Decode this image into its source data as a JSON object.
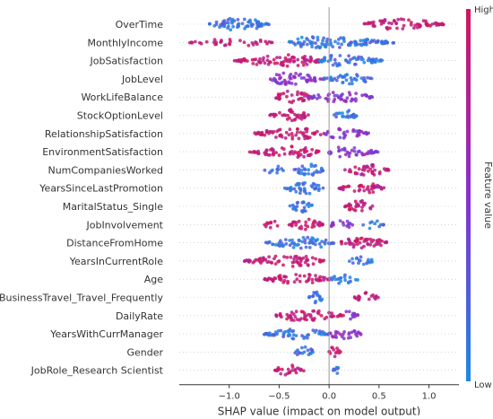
{
  "chart_data": {
    "type": "scatter",
    "subtype": "beeswarm",
    "title": "",
    "xlabel": "SHAP value (impact on model output)",
    "ylabel": "",
    "xlim": [
      -1.5,
      1.3
    ],
    "xticks": [
      -1.0,
      -0.5,
      0.0,
      0.5,
      1.0
    ],
    "xtick_labels": [
      "−1.0",
      "−0.5",
      "0.0",
      "0.5",
      "1.0"
    ],
    "grid": false,
    "colorbar": {
      "label": "Feature value",
      "high_label": "High",
      "low_label": "Low",
      "high_color": "#d1165d",
      "mid_color": "#8a2ed0",
      "low_color": "#1e88e5"
    },
    "features": [
      {
        "name": "OverTime",
        "clusters": [
          {
            "from": -1.2,
            "to": -0.6,
            "center": -0.9,
            "density": 1.0,
            "value": "low"
          },
          {
            "from": 0.35,
            "to": 1.15,
            "center": 0.65,
            "density": 0.8,
            "value": "high"
          }
        ]
      },
      {
        "name": "MonthlyIncome",
        "clusters": [
          {
            "from": -1.4,
            "to": -0.55,
            "center": -0.95,
            "density": 0.4,
            "value": "high"
          },
          {
            "from": -0.4,
            "to": 0.65,
            "center": -0.2,
            "density": 0.9,
            "value": "low"
          }
        ]
      },
      {
        "name": "JobSatisfaction",
        "clusters": [
          {
            "from": -0.95,
            "to": -0.05,
            "center": -0.4,
            "density": 0.9,
            "value": "high"
          },
          {
            "from": -0.1,
            "to": 0.55,
            "center": 0.05,
            "density": 0.8,
            "value": "low"
          }
        ]
      },
      {
        "name": "JobLevel",
        "clusters": [
          {
            "from": -0.6,
            "to": -0.05,
            "center": -0.45,
            "density": 0.9,
            "value": "mid"
          },
          {
            "from": -0.05,
            "to": 0.45,
            "center": 0.25,
            "density": 0.7,
            "value": "low"
          }
        ]
      },
      {
        "name": "WorkLifeBalance",
        "clusters": [
          {
            "from": -0.55,
            "to": -0.15,
            "center": -0.4,
            "density": 0.9,
            "value": "high"
          },
          {
            "from": -0.2,
            "to": 0.45,
            "center": 0.1,
            "density": 0.7,
            "value": "mid"
          }
        ]
      },
      {
        "name": "StockOptionLevel",
        "clusters": [
          {
            "from": -0.6,
            "to": -0.2,
            "center": -0.38,
            "density": 0.9,
            "value": "high"
          },
          {
            "from": 0.05,
            "to": 0.3,
            "center": 0.15,
            "density": 0.8,
            "value": "low"
          }
        ]
      },
      {
        "name": "RelationshipSatisfaction",
        "clusters": [
          {
            "from": -0.75,
            "to": -0.05,
            "center": -0.3,
            "density": 0.8,
            "value": "high"
          },
          {
            "from": -0.05,
            "to": 0.4,
            "center": 0.1,
            "density": 0.7,
            "value": "mid"
          }
        ]
      },
      {
        "name": "EnvironmentSatisfaction",
        "clusters": [
          {
            "from": -0.8,
            "to": -0.1,
            "center": -0.3,
            "density": 0.8,
            "value": "high"
          },
          {
            "from": -0.05,
            "to": 0.5,
            "center": 0.1,
            "density": 0.7,
            "value": "mid"
          }
        ]
      },
      {
        "name": "NumCompaniesWorked",
        "clusters": [
          {
            "from": -0.65,
            "to": -0.45,
            "center": -0.55,
            "density": 0.5,
            "value": "low"
          },
          {
            "from": -0.35,
            "to": -0.05,
            "center": -0.2,
            "density": 0.9,
            "value": "low"
          },
          {
            "from": 0.15,
            "to": 0.6,
            "center": 0.4,
            "density": 0.8,
            "value": "high"
          }
        ]
      },
      {
        "name": "YearsSinceLastPromotion",
        "clusters": [
          {
            "from": -0.45,
            "to": -0.05,
            "center": -0.25,
            "density": 0.9,
            "value": "low"
          },
          {
            "from": 0.1,
            "to": 0.55,
            "center": 0.35,
            "density": 0.8,
            "value": "high"
          }
        ]
      },
      {
        "name": "MaritalStatus_Single",
        "clusters": [
          {
            "from": -0.4,
            "to": -0.15,
            "center": -0.25,
            "density": 0.9,
            "value": "low"
          },
          {
            "from": 0.15,
            "to": 0.45,
            "center": 0.3,
            "density": 0.9,
            "value": "high"
          }
        ]
      },
      {
        "name": "JobInvolvement",
        "clusters": [
          {
            "from": -0.65,
            "to": -0.5,
            "center": -0.58,
            "density": 0.6,
            "value": "high"
          },
          {
            "from": -0.4,
            "to": -0.05,
            "center": -0.25,
            "density": 0.9,
            "value": "high"
          },
          {
            "from": 0.0,
            "to": 0.25,
            "center": 0.1,
            "density": 0.6,
            "value": "mid"
          },
          {
            "from": 0.3,
            "to": 0.55,
            "center": 0.45,
            "density": 0.4,
            "value": "low"
          }
        ]
      },
      {
        "name": "DistanceFromHome",
        "clusters": [
          {
            "from": -0.65,
            "to": 0.05,
            "center": -0.2,
            "density": 0.8,
            "value": "low"
          },
          {
            "from": 0.1,
            "to": 0.6,
            "center": 0.3,
            "density": 0.9,
            "value": "high"
          }
        ]
      },
      {
        "name": "YearsInCurrentRole",
        "clusters": [
          {
            "from": -0.85,
            "to": -0.05,
            "center": -0.35,
            "density": 0.8,
            "value": "high"
          },
          {
            "from": 0.2,
            "to": 0.45,
            "center": 0.3,
            "density": 0.6,
            "value": "low"
          }
        ]
      },
      {
        "name": "Age",
        "clusters": [
          {
            "from": -0.65,
            "to": 0.0,
            "center": -0.3,
            "density": 0.8,
            "value": "high"
          },
          {
            "from": 0.0,
            "to": 0.3,
            "center": 0.12,
            "density": 0.6,
            "value": "low"
          }
        ]
      },
      {
        "name": "BusinessTravel_Travel_Frequently",
        "clusters": [
          {
            "from": -0.2,
            "to": -0.05,
            "center": -0.12,
            "density": 1.0,
            "value": "low"
          },
          {
            "from": 0.25,
            "to": 0.5,
            "center": 0.38,
            "density": 0.7,
            "value": "high"
          }
        ]
      },
      {
        "name": "DailyRate",
        "clusters": [
          {
            "from": -0.55,
            "to": 0.15,
            "center": -0.25,
            "density": 0.8,
            "value": "high"
          },
          {
            "from": 0.1,
            "to": 0.3,
            "center": 0.18,
            "density": 0.5,
            "value": "mid"
          }
        ]
      },
      {
        "name": "YearsWithCurrManager",
        "clusters": [
          {
            "from": -0.65,
            "to": 0.0,
            "center": -0.3,
            "density": 0.8,
            "value": "low"
          },
          {
            "from": 0.0,
            "to": 0.35,
            "center": 0.1,
            "density": 0.7,
            "value": "mid"
          }
        ]
      },
      {
        "name": "Gender",
        "clusters": [
          {
            "from": -0.35,
            "to": -0.15,
            "center": -0.25,
            "density": 0.8,
            "value": "low"
          },
          {
            "from": 0.0,
            "to": 0.12,
            "center": 0.05,
            "density": 1.0,
            "value": "high"
          }
        ]
      },
      {
        "name": "JobRole_Research Scientist",
        "clusters": [
          {
            "from": -0.55,
            "to": -0.25,
            "center": -0.4,
            "density": 0.8,
            "value": "high"
          },
          {
            "from": 0.04,
            "to": 0.1,
            "center": 0.07,
            "density": 1.0,
            "value": "low"
          }
        ]
      }
    ]
  }
}
